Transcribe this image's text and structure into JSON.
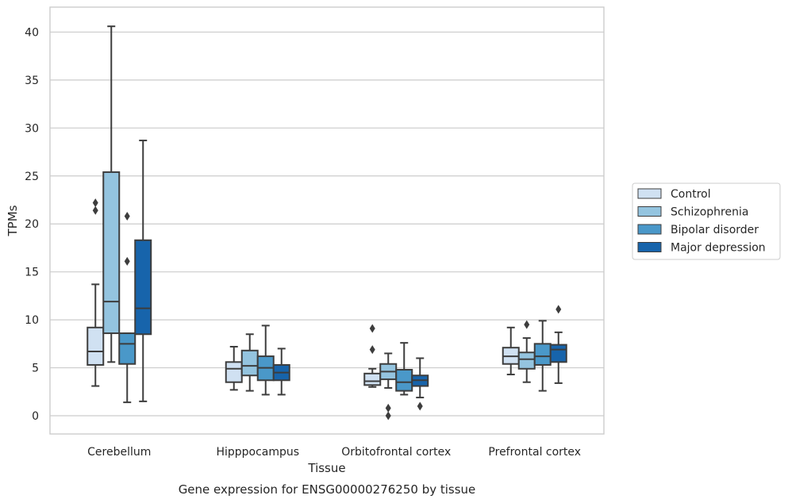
{
  "chart_data": {
    "type": "boxplot",
    "caption": "Gene expression for ENSG00000276250 by tissue",
    "xlabel": "Tissue",
    "ylabel": "TPMs",
    "ylim": [
      -1.9,
      42.6
    ],
    "yticks": [
      0,
      5,
      10,
      15,
      20,
      25,
      30,
      35,
      40
    ],
    "grid": true,
    "legend_placement": "center-right outside",
    "categories": [
      "Cerebellum",
      "Hipppocampus",
      "Orbitofrontal cortex",
      "Prefrontal cortex"
    ],
    "series": [
      {
        "name": "Control",
        "color": "#d0e1f2",
        "boxes": [
          {
            "whislo": 3.1,
            "q1": 5.3,
            "med": 6.7,
            "q3": 9.2,
            "whishi": 13.7,
            "fliers": [
              22.2,
              21.4
            ]
          },
          {
            "whislo": 2.7,
            "q1": 3.5,
            "med": 4.9,
            "q3": 5.6,
            "whishi": 7.2,
            "fliers": []
          },
          {
            "whislo": 3.0,
            "q1": 3.2,
            "med": 3.6,
            "q3": 4.4,
            "whishi": 4.9,
            "fliers": [
              9.1,
              6.9
            ]
          },
          {
            "whislo": 4.3,
            "q1": 5.4,
            "med": 6.2,
            "q3": 7.1,
            "whishi": 9.2,
            "fliers": []
          }
        ]
      },
      {
        "name": "Schizophrenia",
        "color": "#94c4df",
        "boxes": [
          {
            "whislo": 5.6,
            "q1": 8.6,
            "med": 11.9,
            "q3": 25.4,
            "whishi": 40.6,
            "fliers": []
          },
          {
            "whislo": 2.6,
            "q1": 4.2,
            "med": 5.2,
            "q3": 6.8,
            "whishi": 8.5,
            "fliers": []
          },
          {
            "whislo": 2.9,
            "q1": 3.8,
            "med": 4.6,
            "q3": 5.4,
            "whishi": 6.5,
            "fliers": [
              0.8,
              0.0
            ]
          },
          {
            "whislo": 3.5,
            "q1": 4.9,
            "med": 5.9,
            "q3": 6.6,
            "whishi": 8.1,
            "fliers": [
              9.5
            ]
          }
        ]
      },
      {
        "name": "Bipolar disorder",
        "color": "#4a98c9",
        "boxes": [
          {
            "whislo": 1.4,
            "q1": 5.4,
            "med": 7.5,
            "q3": 8.6,
            "whishi": 8.6,
            "fliers": [
              20.8,
              16.1
            ]
          },
          {
            "whislo": 2.2,
            "q1": 3.7,
            "med": 5.0,
            "q3": 6.2,
            "whishi": 9.4,
            "fliers": []
          },
          {
            "whislo": 2.2,
            "q1": 2.6,
            "med": 3.5,
            "q3": 4.8,
            "whishi": 7.6,
            "fliers": []
          },
          {
            "whislo": 2.6,
            "q1": 5.3,
            "med": 6.2,
            "q3": 7.5,
            "whishi": 9.9,
            "fliers": []
          }
        ]
      },
      {
        "name": "Major depression",
        "color": "#1764ab",
        "boxes": [
          {
            "whislo": 1.5,
            "q1": 8.5,
            "med": 11.2,
            "q3": 18.3,
            "whishi": 28.7,
            "fliers": []
          },
          {
            "whislo": 2.2,
            "q1": 3.7,
            "med": 4.5,
            "q3": 5.3,
            "whishi": 7.0,
            "fliers": []
          },
          {
            "whislo": 1.9,
            "q1": 3.1,
            "med": 3.7,
            "q3": 4.2,
            "whishi": 6.0,
            "fliers": [
              1.0
            ]
          },
          {
            "whislo": 3.4,
            "q1": 5.6,
            "med": 6.9,
            "q3": 7.4,
            "whishi": 8.7,
            "fliers": [
              11.1
            ]
          }
        ]
      }
    ]
  }
}
